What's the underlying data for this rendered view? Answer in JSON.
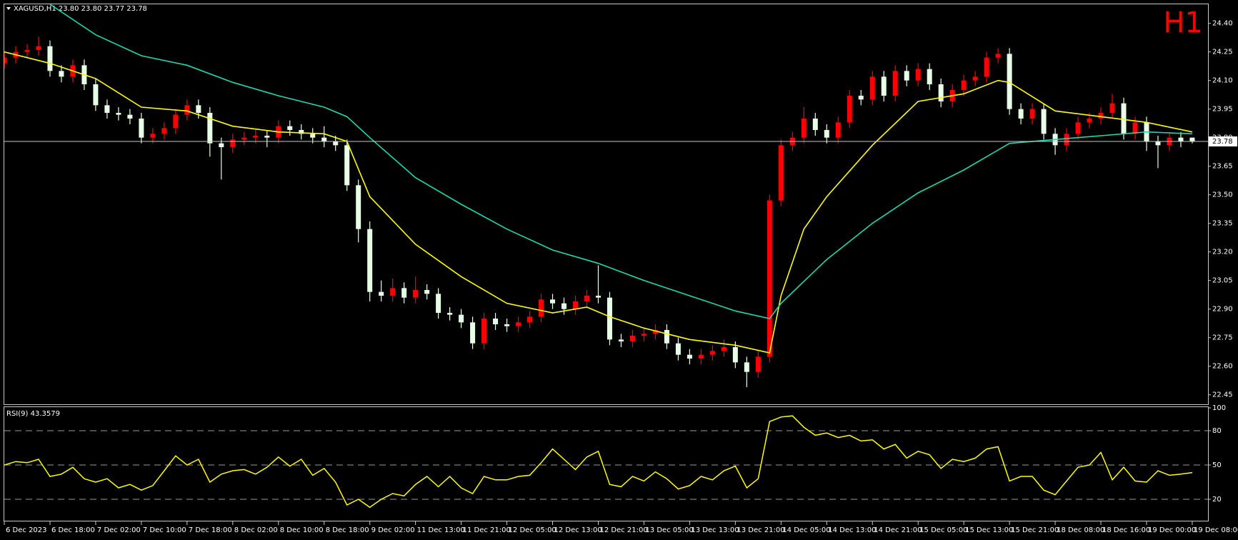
{
  "chart_data": [
    {
      "type": "candlestick",
      "title": "XAGUSD,H1  23.80 23.80 23.77 23.78",
      "timeframe_label": "H1",
      "up_color": "#ff0000",
      "down_color": "#e6ffe6",
      "ylim": [
        22.4,
        24.5
      ],
      "yticks": [
        {
          "value": 24.4,
          "label": "24.40"
        },
        {
          "value": 24.25,
          "label": "24.25"
        },
        {
          "value": 24.1,
          "label": "24.10"
        },
        {
          "value": 23.95,
          "label": "23.95"
        },
        {
          "value": 23.8,
          "label": "23.80"
        },
        {
          "value": 23.65,
          "label": "23.65"
        },
        {
          "value": 23.5,
          "label": "23.50"
        },
        {
          "value": 23.35,
          "label": "23.35"
        },
        {
          "value": 23.2,
          "label": "23.20"
        },
        {
          "value": 23.05,
          "label": "23.05"
        },
        {
          "value": 22.9,
          "label": "22.90"
        },
        {
          "value": 22.75,
          "label": "22.75"
        },
        {
          "value": 22.6,
          "label": "22.60"
        },
        {
          "value": 22.45,
          "label": "22.45"
        }
      ],
      "current_price": 23.78,
      "candles": [
        [
          24.19,
          24.25,
          24.16,
          24.22
        ],
        [
          24.22,
          24.28,
          24.19,
          24.25
        ],
        [
          24.25,
          24.29,
          24.22,
          24.26
        ],
        [
          24.26,
          24.33,
          24.23,
          24.28
        ],
        [
          24.28,
          24.31,
          24.12,
          24.15
        ],
        [
          24.15,
          24.18,
          24.09,
          24.12
        ],
        [
          24.12,
          24.21,
          24.09,
          24.18
        ],
        [
          24.18,
          24.21,
          24.05,
          24.08
        ],
        [
          24.08,
          24.11,
          23.94,
          23.97
        ],
        [
          23.97,
          24.0,
          23.9,
          23.93
        ],
        [
          23.93,
          23.96,
          23.89,
          23.92
        ],
        [
          23.92,
          23.95,
          23.87,
          23.9
        ],
        [
          23.9,
          23.93,
          23.77,
          23.8
        ],
        [
          23.8,
          23.85,
          23.77,
          23.82
        ],
        [
          23.82,
          23.88,
          23.79,
          23.85
        ],
        [
          23.85,
          23.95,
          23.82,
          23.92
        ],
        [
          23.92,
          24.0,
          23.89,
          23.97
        ],
        [
          23.97,
          24.0,
          23.9,
          23.93
        ],
        [
          23.93,
          23.96,
          23.7,
          23.77
        ],
        [
          23.77,
          23.8,
          23.58,
          23.75
        ],
        [
          23.75,
          23.82,
          23.72,
          23.79
        ],
        [
          23.79,
          23.83,
          23.76,
          23.8
        ],
        [
          23.8,
          23.84,
          23.77,
          23.81
        ],
        [
          23.81,
          23.84,
          23.75,
          23.8
        ],
        [
          23.8,
          23.89,
          23.77,
          23.86
        ],
        [
          23.86,
          23.89,
          23.81,
          23.84
        ],
        [
          23.84,
          23.87,
          23.79,
          23.82
        ],
        [
          23.82,
          23.85,
          23.77,
          23.8
        ],
        [
          23.8,
          23.86,
          23.75,
          23.78
        ],
        [
          23.78,
          23.81,
          23.73,
          23.76
        ],
        [
          23.76,
          23.79,
          23.52,
          23.55
        ],
        [
          23.55,
          23.58,
          23.25,
          23.32
        ],
        [
          23.32,
          23.36,
          22.94,
          22.99
        ],
        [
          22.99,
          23.05,
          22.94,
          22.97
        ],
        [
          22.97,
          23.06,
          22.94,
          23.01
        ],
        [
          23.01,
          23.04,
          22.93,
          22.96
        ],
        [
          22.96,
          23.07,
          22.93,
          23.0
        ],
        [
          23.0,
          23.03,
          22.95,
          22.98
        ],
        [
          22.98,
          23.01,
          22.85,
          22.88
        ],
        [
          22.88,
          22.91,
          22.84,
          22.87
        ],
        [
          22.87,
          22.9,
          22.8,
          22.83
        ],
        [
          22.83,
          22.86,
          22.69,
          22.72
        ],
        [
          22.72,
          22.88,
          22.69,
          22.85
        ],
        [
          22.85,
          22.88,
          22.79,
          22.82
        ],
        [
          22.82,
          22.85,
          22.78,
          22.81
        ],
        [
          22.81,
          22.86,
          22.78,
          22.83
        ],
        [
          22.83,
          22.89,
          22.8,
          22.86
        ],
        [
          22.86,
          22.98,
          22.83,
          22.95
        ],
        [
          22.95,
          22.98,
          22.9,
          22.93
        ],
        [
          22.93,
          22.96,
          22.87,
          22.9
        ],
        [
          22.9,
          22.97,
          22.87,
          22.94
        ],
        [
          22.94,
          23.0,
          22.91,
          22.97
        ],
        [
          22.97,
          23.13,
          22.93,
          22.96
        ],
        [
          22.96,
          22.99,
          22.71,
          22.74
        ],
        [
          22.74,
          22.77,
          22.7,
          22.73
        ],
        [
          22.73,
          22.79,
          22.7,
          22.76
        ],
        [
          22.76,
          22.8,
          22.73,
          22.77
        ],
        [
          22.77,
          22.82,
          22.74,
          22.79
        ],
        [
          22.79,
          22.82,
          22.69,
          22.72
        ],
        [
          22.72,
          22.75,
          22.63,
          22.66
        ],
        [
          22.66,
          22.69,
          22.61,
          22.64
        ],
        [
          22.64,
          22.69,
          22.61,
          22.66
        ],
        [
          22.66,
          22.71,
          22.63,
          22.68
        ],
        [
          22.68,
          22.74,
          22.65,
          22.7
        ],
        [
          22.7,
          22.73,
          22.59,
          22.62
        ],
        [
          22.62,
          22.65,
          22.49,
          22.57
        ],
        [
          22.57,
          22.68,
          22.54,
          22.65
        ],
        [
          22.65,
          23.5,
          22.62,
          23.47
        ],
        [
          23.47,
          23.79,
          23.44,
          23.76
        ],
        [
          23.76,
          23.83,
          23.73,
          23.8
        ],
        [
          23.8,
          23.96,
          23.77,
          23.9
        ],
        [
          23.9,
          23.93,
          23.81,
          23.84
        ],
        [
          23.84,
          23.87,
          23.77,
          23.8
        ],
        [
          23.8,
          23.91,
          23.77,
          23.88
        ],
        [
          23.88,
          24.05,
          23.85,
          24.02
        ],
        [
          24.02,
          24.05,
          23.97,
          24.0
        ],
        [
          24.0,
          24.15,
          23.97,
          24.12
        ],
        [
          24.12,
          24.15,
          23.99,
          24.02
        ],
        [
          24.02,
          24.18,
          23.99,
          24.15
        ],
        [
          24.15,
          24.18,
          24.07,
          24.1
        ],
        [
          24.1,
          24.19,
          24.07,
          24.16
        ],
        [
          24.16,
          24.19,
          24.05,
          24.08
        ],
        [
          24.08,
          24.11,
          23.96,
          23.99
        ],
        [
          23.99,
          24.08,
          23.96,
          24.05
        ],
        [
          24.05,
          24.13,
          24.02,
          24.1
        ],
        [
          24.1,
          24.15,
          24.07,
          24.12
        ],
        [
          24.12,
          24.25,
          24.09,
          24.22
        ],
        [
          24.22,
          24.27,
          24.19,
          24.24
        ],
        [
          24.24,
          24.27,
          23.92,
          23.95
        ],
        [
          23.95,
          23.98,
          23.87,
          23.9
        ],
        [
          23.9,
          23.98,
          23.87,
          23.95
        ],
        [
          23.95,
          23.98,
          23.79,
          23.82
        ],
        [
          23.82,
          23.85,
          23.71,
          23.76
        ],
        [
          23.76,
          23.85,
          23.73,
          23.82
        ],
        [
          23.82,
          23.91,
          23.79,
          23.88
        ],
        [
          23.88,
          23.93,
          23.85,
          23.9
        ],
        [
          23.9,
          23.96,
          23.87,
          23.93
        ],
        [
          23.93,
          24.03,
          23.9,
          23.98
        ],
        [
          23.98,
          24.01,
          23.79,
          23.82
        ],
        [
          23.82,
          23.91,
          23.79,
          23.88
        ],
        [
          23.88,
          23.91,
          23.73,
          23.78
        ],
        [
          23.78,
          23.81,
          23.64,
          23.76
        ],
        [
          23.76,
          23.83,
          23.73,
          23.8
        ],
        [
          23.8,
          23.83,
          23.75,
          23.78
        ],
        [
          23.8,
          23.8,
          23.77,
          23.78
        ]
      ],
      "ma_lines": [
        {
          "color": "#ffff00",
          "x": [
            0,
            4,
            8,
            12,
            16,
            20,
            24,
            28,
            30,
            32,
            36,
            40,
            44,
            48,
            51,
            53,
            56,
            60,
            64,
            67,
            68,
            70,
            72,
            76,
            80,
            84,
            87,
            88,
            92,
            96,
            100,
            104
          ],
          "values": [
            24.25,
            24.19,
            24.11,
            23.96,
            23.94,
            23.86,
            23.83,
            23.82,
            23.78,
            23.49,
            23.24,
            23.07,
            22.93,
            22.88,
            22.91,
            22.86,
            22.8,
            22.74,
            22.71,
            22.67,
            22.97,
            23.32,
            23.49,
            23.76,
            23.99,
            24.03,
            24.1,
            24.09,
            23.94,
            23.91,
            23.88,
            23.83
          ]
        },
        {
          "color": "#20d8b0",
          "x": [
            4,
            8,
            12,
            16,
            20,
            24,
            28,
            30,
            32,
            36,
            40,
            44,
            48,
            52,
            56,
            60,
            64,
            67,
            68,
            72,
            76,
            80,
            84,
            88,
            92,
            96,
            100,
            104
          ],
          "values": [
            24.5,
            24.34,
            24.23,
            24.18,
            24.09,
            24.02,
            23.96,
            23.91,
            23.8,
            23.59,
            23.45,
            23.32,
            23.21,
            23.14,
            23.05,
            22.97,
            22.89,
            22.85,
            22.93,
            23.16,
            23.35,
            23.51,
            23.63,
            23.77,
            23.79,
            23.81,
            23.83,
            23.82
          ]
        }
      ]
    },
    {
      "type": "line",
      "title": "RSI(9) 43.3579",
      "color": "#ffff00",
      "ylim": [
        0,
        100
      ],
      "yticks": [
        100,
        80,
        50,
        20
      ],
      "levels": [
        80,
        50,
        20
      ],
      "values": [
        50,
        53,
        52,
        55,
        40,
        42,
        48,
        38,
        35,
        38,
        30,
        33,
        28,
        32,
        45,
        58,
        50,
        55,
        35,
        42,
        45,
        46,
        42,
        48,
        57,
        49,
        55,
        41,
        47,
        35,
        15,
        20,
        13,
        20,
        25,
        23,
        33,
        40,
        31,
        40,
        30,
        25,
        40,
        37,
        37,
        40,
        41,
        52,
        64,
        55,
        46,
        57,
        62,
        33,
        31,
        40,
        36,
        44,
        38,
        29,
        32,
        40,
        37,
        45,
        49,
        30,
        38,
        88,
        92,
        93,
        83,
        76,
        78,
        74,
        76,
        71,
        72,
        64,
        68,
        56,
        62,
        59,
        47,
        55,
        53,
        56,
        64,
        66,
        36,
        40,
        40,
        28,
        24,
        36,
        48,
        50,
        61,
        37,
        48,
        36,
        35,
        45,
        41,
        42,
        43.3579
      ],
      "xticks": [
        {
          "value": 0,
          "label": "6 Dec 2023"
        },
        {
          "value": 4,
          "label": "6 Dec 18:00"
        },
        {
          "value": 8,
          "label": "7 Dec 02:00"
        },
        {
          "value": 12,
          "label": "7 Dec 10:00"
        },
        {
          "value": 16,
          "label": "7 Dec 18:00"
        },
        {
          "value": 20,
          "label": "8 Dec 02:00"
        },
        {
          "value": 24,
          "label": "8 Dec 10:00"
        },
        {
          "value": 28,
          "label": "8 Dec 18:00"
        },
        {
          "value": 32,
          "label": "9 Dec 02:00"
        },
        {
          "value": 36,
          "label": "11 Dec 13:00"
        },
        {
          "value": 40,
          "label": "11 Dec 21:00"
        },
        {
          "value": 44,
          "label": "12 Dec 05:00"
        },
        {
          "value": 48,
          "label": "12 Dec 13:00"
        },
        {
          "value": 52,
          "label": "12 Dec 21:00"
        },
        {
          "value": 56,
          "label": "13 Dec 05:00"
        },
        {
          "value": 60,
          "label": "13 Dec 13:00"
        },
        {
          "value": 64,
          "label": "13 Dec 21:00"
        },
        {
          "value": 68,
          "label": "14 Dec 05:00"
        },
        {
          "value": 72,
          "label": "14 Dec 13:00"
        },
        {
          "value": 76,
          "label": "14 Dec 21:00"
        },
        {
          "value": 80,
          "label": "15 Dec 05:00"
        },
        {
          "value": 84,
          "label": "15 Dec 13:00"
        },
        {
          "value": 88,
          "label": "15 Dec 21:00"
        },
        {
          "value": 92,
          "label": "18 Dec 08:00"
        },
        {
          "value": 96,
          "label": "18 Dec 16:00"
        },
        {
          "value": 100,
          "label": "19 Dec 00:00"
        },
        {
          "value": 104,
          "label": "19 Dec 08:00"
        }
      ]
    }
  ]
}
